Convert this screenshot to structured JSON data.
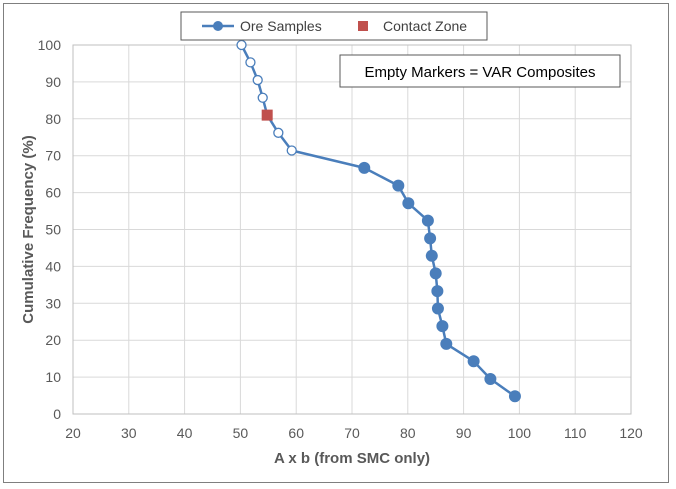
{
  "chart_data": {
    "type": "line",
    "title": "",
    "xlabel": "A x b (from SMC only)",
    "ylabel": "Cumulative Frequency (%)",
    "xlim": [
      20,
      120
    ],
    "ylim": [
      0,
      100
    ],
    "xticks": [
      20,
      30,
      40,
      50,
      60,
      70,
      80,
      90,
      100,
      110,
      120
    ],
    "yticks": [
      0,
      10,
      20,
      30,
      40,
      50,
      60,
      70,
      80,
      90,
      100
    ],
    "grid": true,
    "legend_position": "top",
    "annotation": "Empty Markers = VAR Composites",
    "series": [
      {
        "name": "Ore Samples",
        "color": "#4a7ebb",
        "points": [
          {
            "x": 50.2,
            "y": 100,
            "marker": "empty"
          },
          {
            "x": 51.8,
            "y": 95.3,
            "marker": "empty"
          },
          {
            "x": 53.1,
            "y": 90.5,
            "marker": "empty"
          },
          {
            "x": 54.0,
            "y": 85.7,
            "marker": "empty"
          },
          {
            "x": 54.8,
            "y": 81.0,
            "marker": "empty"
          },
          {
            "x": 56.8,
            "y": 76.2,
            "marker": "empty"
          },
          {
            "x": 59.2,
            "y": 71.4,
            "marker": "empty"
          },
          {
            "x": 72.2,
            "y": 66.7,
            "marker": "filled"
          },
          {
            "x": 78.3,
            "y": 61.9,
            "marker": "filled"
          },
          {
            "x": 80.1,
            "y": 57.1,
            "marker": "filled"
          },
          {
            "x": 83.6,
            "y": 52.4,
            "marker": "filled"
          },
          {
            "x": 84.0,
            "y": 47.6,
            "marker": "filled"
          },
          {
            "x": 84.3,
            "y": 42.9,
            "marker": "filled"
          },
          {
            "x": 85.0,
            "y": 38.1,
            "marker": "filled"
          },
          {
            "x": 85.3,
            "y": 33.3,
            "marker": "filled"
          },
          {
            "x": 85.4,
            "y": 28.6,
            "marker": "filled"
          },
          {
            "x": 86.2,
            "y": 23.8,
            "marker": "filled"
          },
          {
            "x": 86.9,
            "y": 19.0,
            "marker": "filled"
          },
          {
            "x": 91.8,
            "y": 14.3,
            "marker": "filled"
          },
          {
            "x": 94.8,
            "y": 9.5,
            "marker": "filled"
          },
          {
            "x": 99.2,
            "y": 4.8,
            "marker": "filled"
          }
        ]
      },
      {
        "name": "Contact Zone",
        "color": "#c0504d",
        "points": [
          {
            "x": 54.8,
            "y": 81.0
          }
        ]
      }
    ]
  }
}
